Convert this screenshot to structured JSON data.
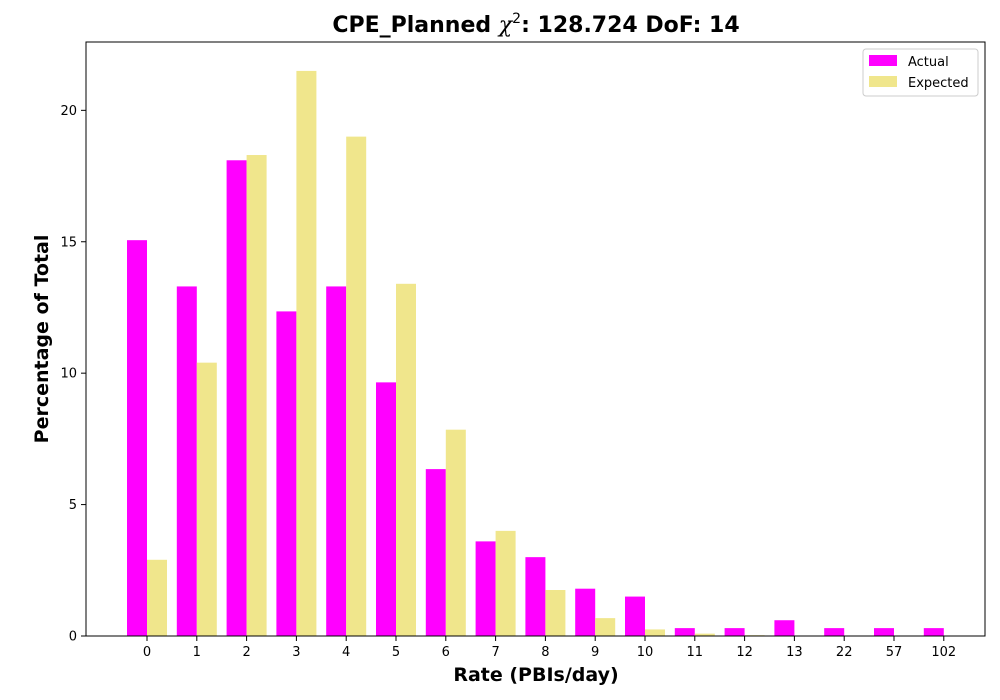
{
  "chart_data": {
    "type": "bar",
    "title_prefix": "CPE_Planned ",
    "title_chi": "χ",
    "title_sup": "2",
    "title_suffix": ": 128.724 DoF: 14",
    "xlabel": "Rate (PBIs/day)",
    "ylabel": "Percentage of Total",
    "categories": [
      "0",
      "1",
      "2",
      "3",
      "4",
      "5",
      "6",
      "7",
      "8",
      "9",
      "10",
      "11",
      "12",
      "13",
      "22",
      "57",
      "102"
    ],
    "series": [
      {
        "name": "Actual",
        "color": "#ff00ff",
        "values": [
          15.06,
          13.3,
          18.1,
          12.35,
          13.3,
          9.65,
          6.35,
          3.6,
          3.0,
          1.8,
          1.5,
          0.3,
          0.3,
          0.6,
          0.3,
          0.3,
          0.3
        ]
      },
      {
        "name": "Expected",
        "color": "#f0e68c",
        "values": [
          2.9,
          10.4,
          18.3,
          21.5,
          19.0,
          13.4,
          7.85,
          4.0,
          1.75,
          0.68,
          0.25,
          0.09,
          0.03,
          0.0,
          0.0,
          0.0,
          0.0
        ]
      }
    ],
    "ylim": [
      0,
      22.6
    ],
    "yticks": [
      0,
      5,
      10,
      15,
      20
    ],
    "grid": false,
    "legend_position": "top-right"
  }
}
